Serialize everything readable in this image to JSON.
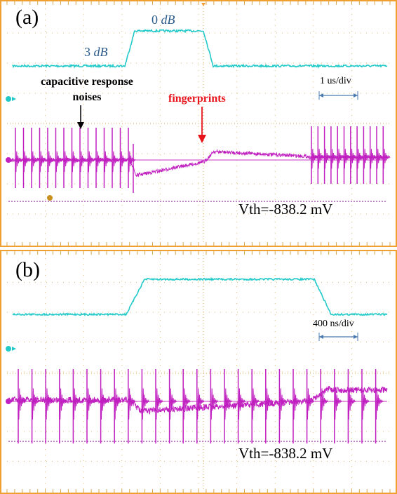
{
  "colors": {
    "border": "#f0a030",
    "grid": "#d8a850",
    "channel1": "#22c9c9",
    "channel2": "#c020c0",
    "threshold": "#9a3aa8",
    "annotation_red": "#e8141c",
    "scale_arrow": "#4a7ab0"
  },
  "panel_a": {
    "label": "(a)",
    "top_level_label": "0 dB",
    "top_level_value": "0",
    "top_level_unit": "dB",
    "low_level_label": "3 dB",
    "low_level_value": "3",
    "low_level_unit": "dB",
    "annotation_noise_line1": "capacitive response",
    "annotation_noise_line2": "noises",
    "annotation_fingerprints": "fingerprints",
    "time_scale": "1 us/div",
    "vth": "Vth=-838.2 mV"
  },
  "panel_b": {
    "label": "(b)",
    "time_scale": "400 ns/div",
    "vth": "Vth=-838.2 mV"
  }
}
